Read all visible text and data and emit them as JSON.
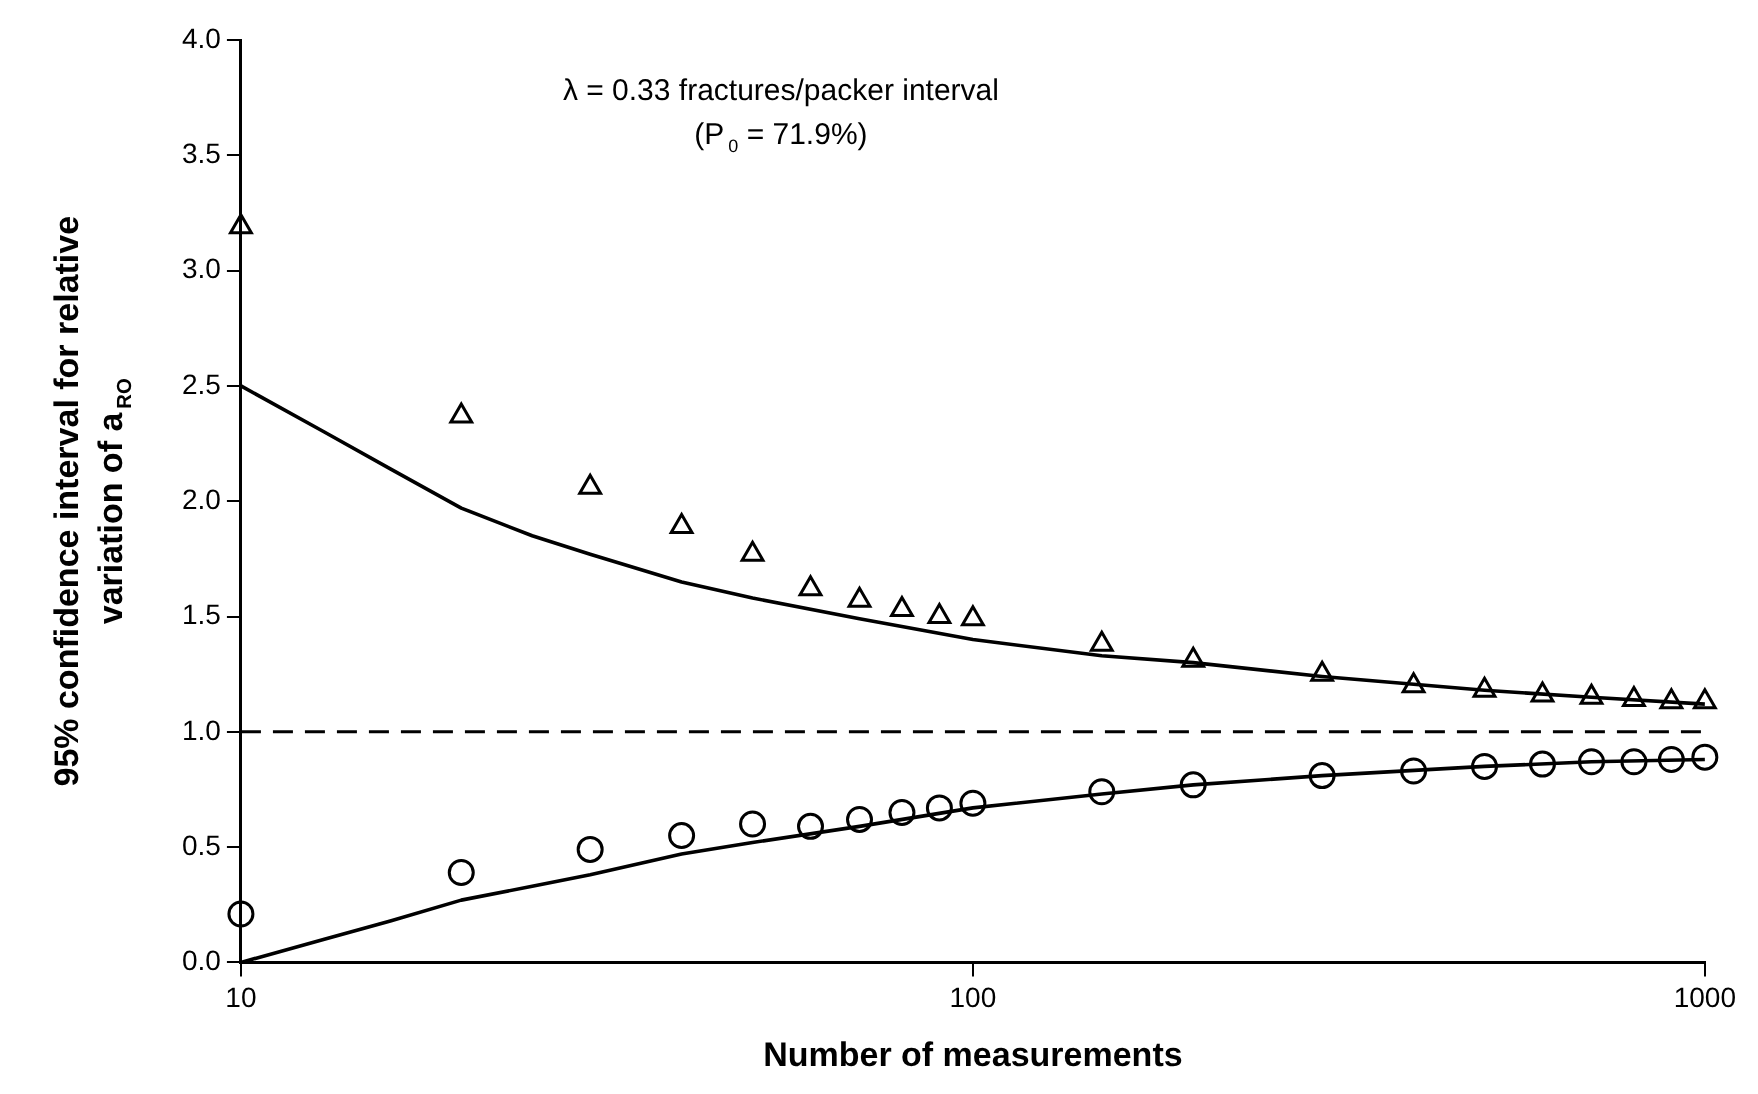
{
  "chart_data": {
    "type": "scatter",
    "xlabel": "Number of measurements",
    "ylabel": "95% confidence interval for relative variation of a$_{RO}$",
    "annotations": [
      "λ = 0.33 fractures/packer interval",
      "(P$_{0}$ = 71.9%)"
    ],
    "log": "x",
    "grid": false,
    "legend": false,
    "xlim": [
      10,
      1000
    ],
    "xticks": [
      10,
      100,
      1000
    ],
    "ylim": [
      0,
      4
    ],
    "yticks": [
      {
        "value": 0,
        "label": "0.0"
      },
      {
        "value": 0.5,
        "label": "0.5"
      },
      {
        "value": 1,
        "label": "1.0"
      },
      {
        "value": 1.5,
        "label": "1.5"
      },
      {
        "value": 2,
        "label": "2.0"
      },
      {
        "value": 2.5,
        "label": "2.5"
      },
      {
        "value": 3,
        "label": "3.0"
      },
      {
        "value": 3.5,
        "label": "3.5"
      },
      {
        "value": 4,
        "label": "4.0"
      }
    ],
    "ref_lines": [
      {
        "axis": "y",
        "value": 1,
        "label": null,
        "color": "#000000",
        "line_style": "dashed"
      }
    ],
    "series": [
      {
        "marker": "triangle",
        "color": "#000000",
        "x": [
          10,
          20,
          30,
          40,
          50,
          60,
          70,
          80,
          90,
          100,
          150,
          200,
          300,
          400,
          500,
          600,
          700,
          800,
          900,
          1000
        ],
        "values": [
          3.19,
          2.37,
          2.06,
          1.89,
          1.77,
          1.62,
          1.57,
          1.53,
          1.5,
          1.49,
          1.38,
          1.31,
          1.25,
          1.2,
          1.18,
          1.16,
          1.15,
          1.14,
          1.13,
          1.13
        ]
      },
      {
        "marker": "circle",
        "color": "#000000",
        "x": [
          10,
          20,
          30,
          40,
          50,
          60,
          70,
          80,
          90,
          100,
          150,
          200,
          300,
          400,
          500,
          600,
          700,
          800,
          900,
          1000
        ],
        "values": [
          0.21,
          0.39,
          0.49,
          0.55,
          0.6,
          0.59,
          0.62,
          0.65,
          0.67,
          0.69,
          0.74,
          0.77,
          0.81,
          0.83,
          0.85,
          0.86,
          0.87,
          0.87,
          0.88,
          0.89
        ]
      },
      {
        "type": "line",
        "marker": "none",
        "line_style": "solid",
        "color": "#000000",
        "x": [
          10,
          13,
          16,
          20,
          25,
          30,
          40,
          50,
          70,
          100,
          150,
          200,
          300,
          500,
          700,
          1000
        ],
        "values": [
          2.5,
          2.3,
          2.14,
          1.97,
          1.85,
          1.77,
          1.65,
          1.58,
          1.49,
          1.4,
          1.33,
          1.3,
          1.24,
          1.18,
          1.15,
          1.12
        ]
      },
      {
        "type": "line",
        "marker": "none",
        "line_style": "solid",
        "color": "#000000",
        "x": [
          10,
          13,
          16,
          20,
          25,
          30,
          40,
          50,
          70,
          100,
          150,
          200,
          300,
          500,
          700,
          1000
        ],
        "values": [
          0,
          0.1,
          0.18,
          0.27,
          0.33,
          0.38,
          0.47,
          0.52,
          0.59,
          0.67,
          0.73,
          0.77,
          0.81,
          0.85,
          0.87,
          0.88
        ]
      }
    ]
  }
}
